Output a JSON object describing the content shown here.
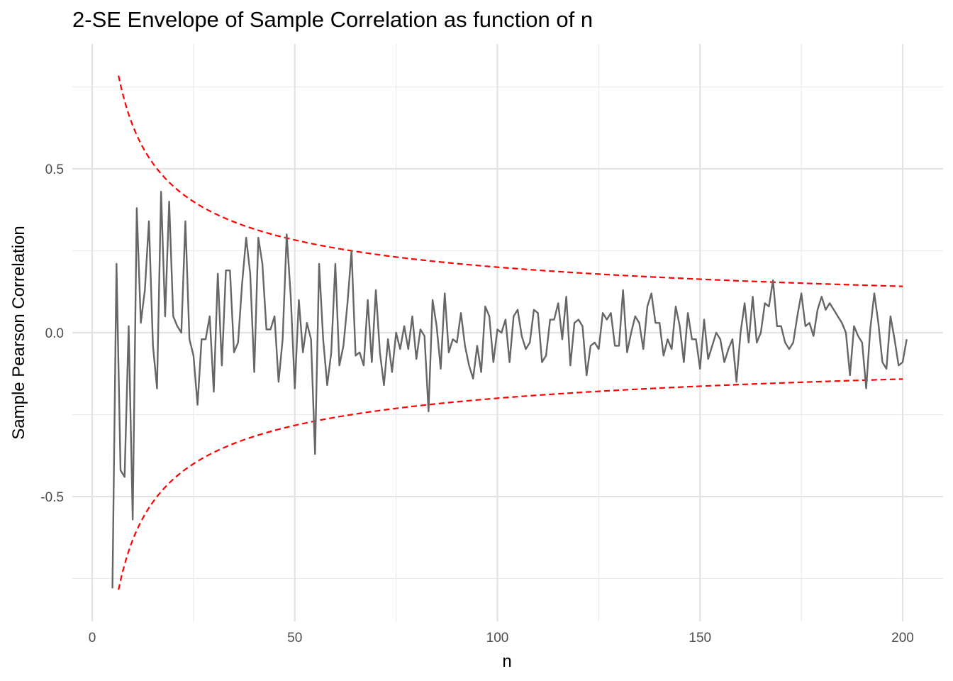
{
  "chart_data": {
    "type": "line",
    "title": "2-SE Envelope of Sample Correlation as function of n",
    "xlabel": "n",
    "ylabel": "Sample Pearson Correlation",
    "xlim": [
      0,
      200
    ],
    "ylim": [
      -0.78,
      0.8
    ],
    "x_ticks": [
      0,
      50,
      100,
      150,
      200
    ],
    "x_tick_labels": [
      "0",
      "50",
      "100",
      "150",
      "200"
    ],
    "y_ticks": [
      -0.5,
      0.0,
      0.5
    ],
    "y_tick_labels": [
      "-0.5",
      "0.0",
      "0.5"
    ],
    "grid": true,
    "legend": "none",
    "envelope": {
      "style": "dashed",
      "color": "#ff0000",
      "formula": "±2/sqrt(n)",
      "n_start": 6.5,
      "n_end": 200
    },
    "series": [
      {
        "color": "#666666",
        "x_start": 5,
        "x_step": 1,
        "values": [
          -0.78,
          0.21,
          -0.42,
          -0.44,
          0.02,
          -0.57,
          0.38,
          0.03,
          0.13,
          0.34,
          -0.04,
          -0.17,
          0.43,
          0.05,
          0.4,
          0.05,
          0.02,
          0.0,
          0.34,
          -0.02,
          -0.07,
          -0.22,
          -0.02,
          -0.02,
          0.05,
          -0.18,
          0.18,
          -0.1,
          0.19,
          0.19,
          -0.06,
          -0.03,
          0.15,
          0.29,
          0.18,
          -0.12,
          0.29,
          0.21,
          0.01,
          0.01,
          0.05,
          -0.15,
          -0.02,
          0.3,
          0.11,
          -0.17,
          0.1,
          -0.06,
          0.03,
          -0.02,
          -0.37,
          0.21,
          -0.02,
          -0.16,
          -0.06,
          0.21,
          -0.1,
          -0.04,
          0.09,
          0.25,
          -0.07,
          -0.06,
          -0.1,
          0.1,
          -0.09,
          0.13,
          -0.06,
          -0.16,
          -0.02,
          -0.12,
          0.0,
          -0.05,
          0.02,
          -0.05,
          0.05,
          -0.08,
          0.01,
          -0.01,
          -0.24,
          0.1,
          0.02,
          -0.11,
          0.12,
          -0.06,
          -0.02,
          -0.03,
          0.06,
          -0.04,
          -0.1,
          -0.14,
          -0.04,
          -0.12,
          0.08,
          0.05,
          -0.09,
          0.01,
          0.0,
          0.04,
          -0.09,
          0.05,
          0.07,
          -0.01,
          -0.05,
          -0.03,
          0.07,
          0.06,
          -0.09,
          -0.07,
          0.04,
          0.04,
          0.09,
          -0.02,
          0.11,
          -0.1,
          0.03,
          0.04,
          0.02,
          -0.13,
          -0.04,
          -0.03,
          -0.05,
          0.06,
          0.04,
          0.06,
          -0.04,
          -0.04,
          0.13,
          -0.06,
          0.0,
          0.05,
          0.03,
          -0.05,
          0.08,
          0.12,
          0.03,
          0.03,
          -0.07,
          -0.02,
          -0.05,
          0.08,
          0.02,
          -0.09,
          0.06,
          -0.02,
          -0.02,
          -0.11,
          0.04,
          -0.08,
          -0.04,
          0.0,
          -0.02,
          -0.09,
          -0.05,
          -0.02,
          -0.15,
          0.0,
          0.09,
          -0.03,
          0.11,
          -0.03,
          0.0,
          0.09,
          0.08,
          0.16,
          0.02,
          0.02,
          -0.03,
          -0.05,
          -0.03,
          0.05,
          0.12,
          0.02,
          0.03,
          -0.01,
          0.07,
          0.11,
          0.07,
          0.09,
          0.07,
          0.05,
          0.03,
          0.0,
          -0.13,
          0.02,
          -0.01,
          -0.03,
          -0.17,
          0.01,
          0.12,
          0.03,
          -0.09,
          -0.11,
          0.05,
          -0.02,
          -0.1,
          -0.09,
          -0.02
        ]
      }
    ]
  }
}
